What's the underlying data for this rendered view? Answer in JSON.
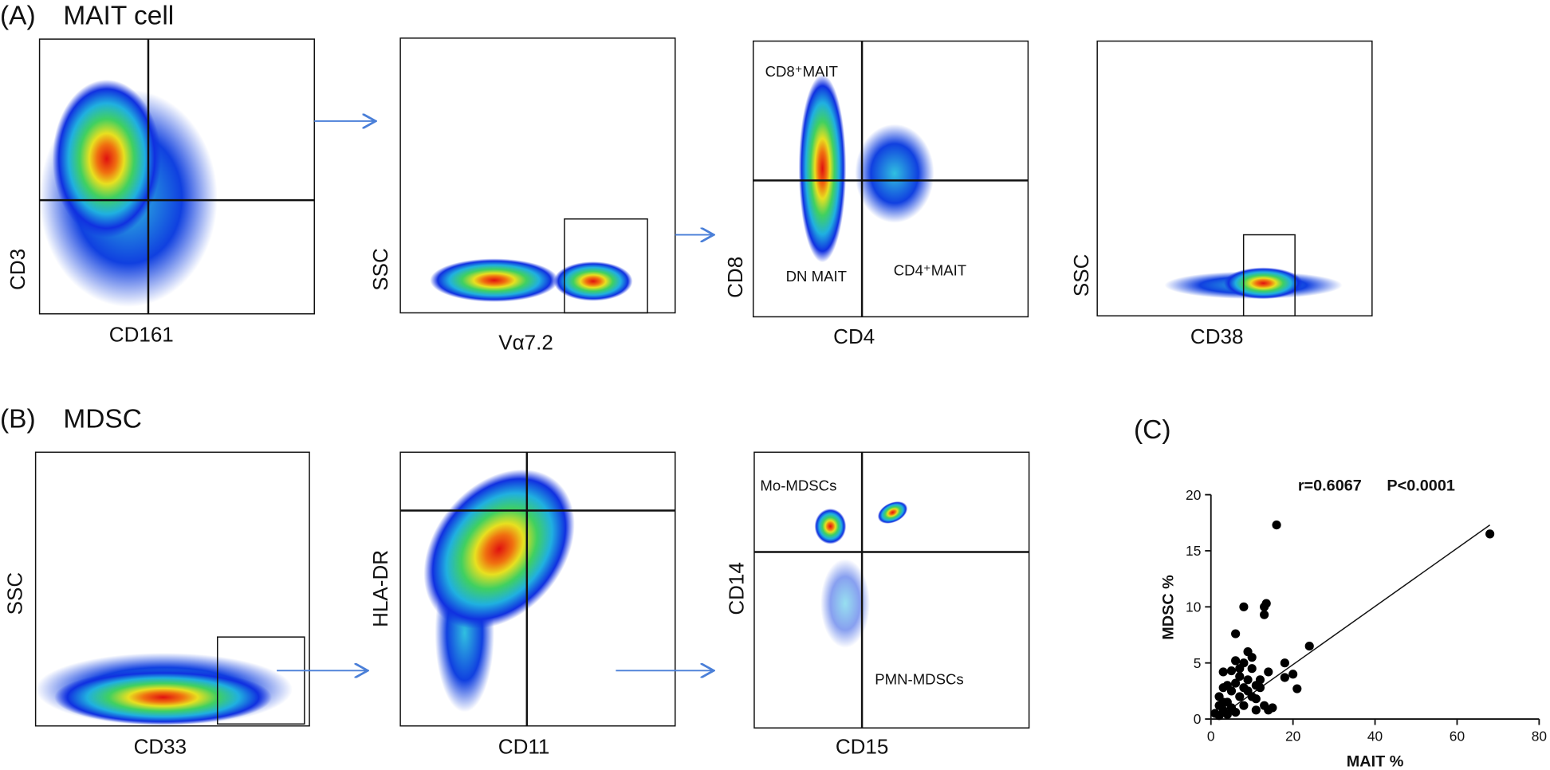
{
  "panel_a": {
    "label": "(A)",
    "title": "MAIT cell",
    "plots": [
      {
        "x_label": "CD161",
        "y_label": "CD3"
      },
      {
        "x_label": "Vα7.2",
        "y_label": "SSC"
      },
      {
        "x_label": "CD4",
        "y_label": "CD8",
        "gate_labels": [
          "CD8⁺MAIT",
          "DN MAIT",
          "CD4⁺MAIT"
        ]
      },
      {
        "x_label": "CD38",
        "y_label": "SSC"
      }
    ]
  },
  "panel_b": {
    "label": "(B)",
    "title": "MDSC",
    "plots": [
      {
        "x_label": "CD33",
        "y_label": "SSC"
      },
      {
        "x_label": "CD11",
        "y_label": "HLA-DR"
      },
      {
        "x_label": "CD15",
        "y_label": "CD14",
        "gate_labels": [
          "Mo-MDSCs",
          "PMN-MDSCs"
        ]
      }
    ]
  },
  "chart_data": {
    "type": "scatter",
    "panel_label": "(C)",
    "annotations": [
      "r=0.6067",
      "P<0.0001"
    ],
    "x_label": "MAIT %",
    "y_label": "MDSC %",
    "color": "#000000",
    "xlim": [
      0,
      80
    ],
    "xticks": [
      0,
      20,
      40,
      60,
      80
    ],
    "ylim": [
      0,
      20
    ],
    "yticks": [
      0,
      5,
      10,
      15,
      20
    ],
    "x": [
      68,
      16,
      24,
      13.5,
      13,
      8,
      6,
      13,
      9,
      18,
      20,
      18,
      21,
      14,
      12,
      10,
      11,
      9,
      8,
      7,
      6,
      5,
      4,
      3,
      3,
      2,
      2,
      1,
      2,
      3,
      4,
      5,
      6,
      7,
      8,
      9,
      10,
      11,
      12,
      14,
      15,
      6,
      5,
      4,
      7,
      8,
      10,
      3,
      13,
      11
    ],
    "values": [
      16.5,
      17.3,
      6.5,
      10.3,
      10,
      10,
      7.6,
      9.3,
      6,
      5,
      4,
      3.7,
      2.7,
      4.2,
      3.5,
      4.5,
      3,
      3.5,
      5,
      4.5,
      5.2,
      4.3,
      3,
      4.2,
      2.8,
      2,
      1.2,
      0.5,
      0.3,
      0.8,
      1.5,
      2.5,
      3.2,
      2,
      1.2,
      2.5,
      2,
      1.8,
      2.8,
      0.8,
      1,
      0.6,
      1,
      0.4,
      3.8,
      2.8,
      5.5,
      1.5,
      1.2,
      0.8
    ],
    "fit": {
      "x": [
        3.6,
        68
      ],
      "values": [
        0.6,
        17.3
      ]
    }
  }
}
